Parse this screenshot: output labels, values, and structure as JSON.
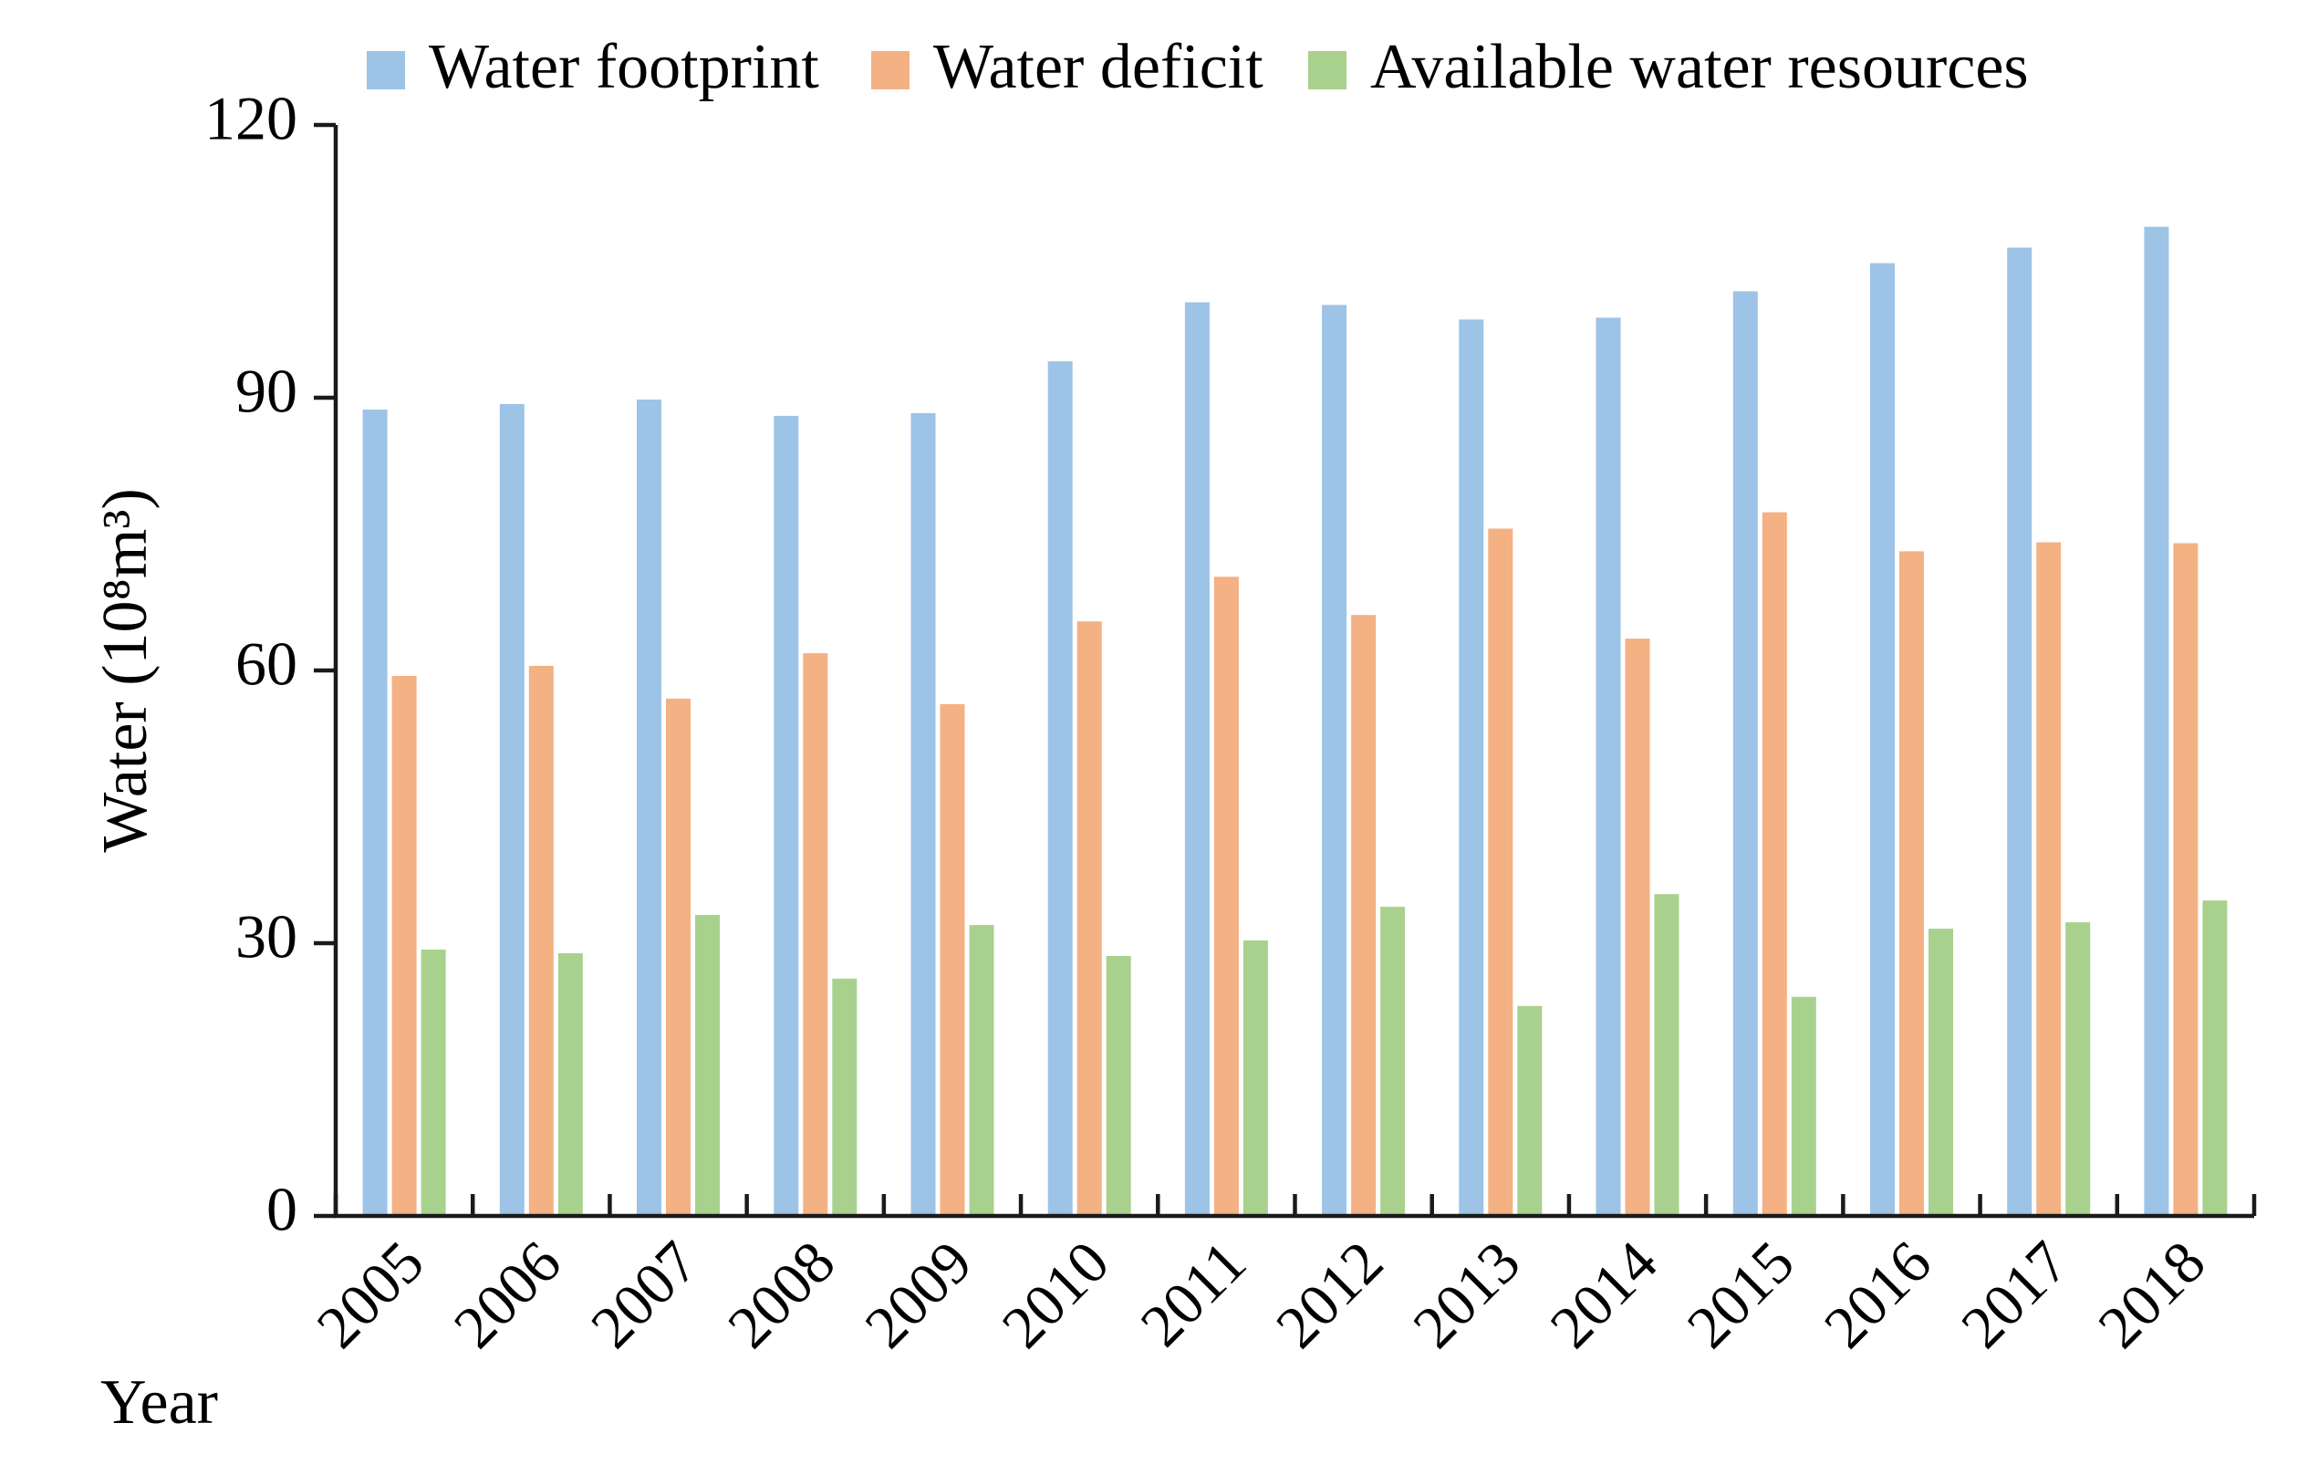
{
  "chart_data": {
    "type": "bar",
    "title": "",
    "xlabel": "Year",
    "ylabel": "Water (10⁸m³)",
    "ylim": [
      0,
      120
    ],
    "yticks": [
      0,
      30,
      60,
      90,
      120
    ],
    "grid": false,
    "legend_position": "top",
    "categories": [
      "2005",
      "2006",
      "2007",
      "2008",
      "2009",
      "2010",
      "2011",
      "2012",
      "2013",
      "2014",
      "2015",
      "2016",
      "2017",
      "2018"
    ],
    "series": [
      {
        "name": "Water footprint",
        "color": "#9dc3e6",
        "values": [
          88.7,
          89.3,
          89.8,
          88.0,
          88.3,
          94.0,
          100.5,
          100.2,
          98.6,
          98.8,
          101.7,
          104.8,
          106.5,
          108.8
        ]
      },
      {
        "name": "Water deficit",
        "color": "#f4b183",
        "values": [
          59.4,
          60.5,
          56.9,
          61.9,
          56.3,
          65.4,
          70.3,
          66.1,
          75.6,
          63.5,
          77.4,
          73.1,
          74.1,
          74.0
        ]
      },
      {
        "name": "Available water resources",
        "color": "#a9d18e",
        "values": [
          29.3,
          28.9,
          33.1,
          26.1,
          32.0,
          28.6,
          30.3,
          34.0,
          23.1,
          35.4,
          24.1,
          31.6,
          32.3,
          34.7
        ]
      }
    ]
  }
}
